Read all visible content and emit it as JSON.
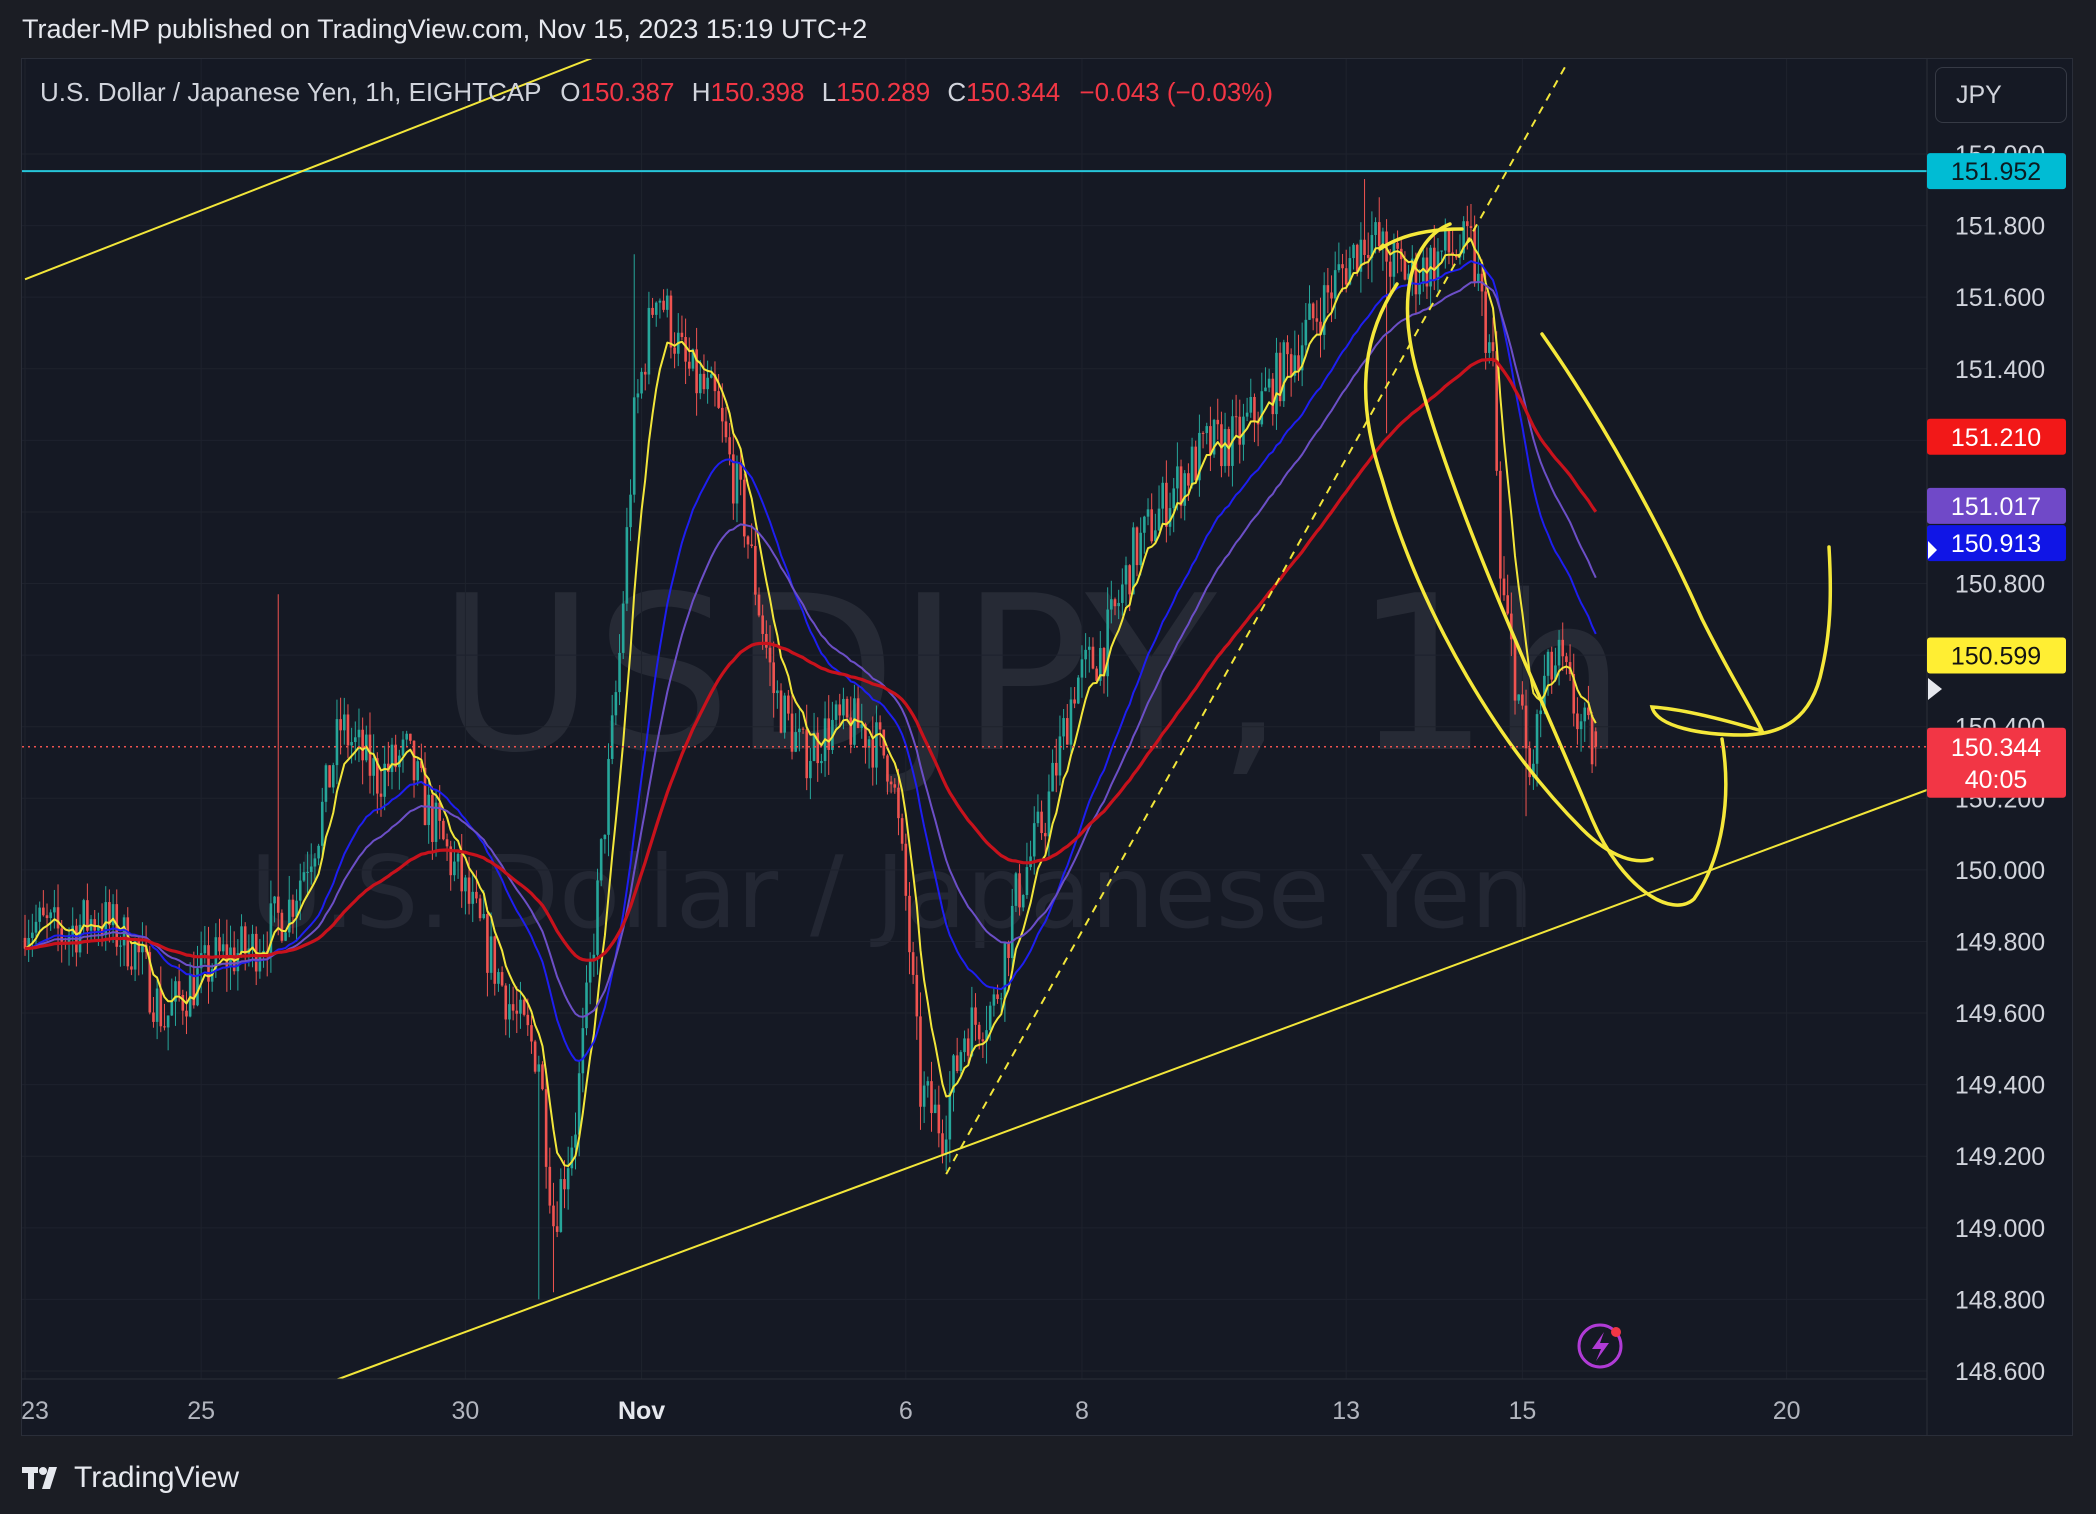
{
  "header": {
    "publish_text": "Trader-MP published on TradingView.com, Nov 15, 2023 15:19 UTC+2"
  },
  "legend": {
    "symbol": "U.S. Dollar / Japanese Yen, 1h, EIGHTCAP",
    "o_label": "O",
    "o_value": "150.387",
    "h_label": "H",
    "h_value": "150.398",
    "l_label": "L",
    "l_value": "150.289",
    "c_label": "C",
    "c_value": "150.344",
    "change": "−0.043 (−0.03%)"
  },
  "currency_button": "JPY",
  "watermark": {
    "symbol": "USDJPY, 1h",
    "name": "U.S. Dollar / Japanese Yen"
  },
  "footer": {
    "brand": "TradingView"
  },
  "colors": {
    "background": "#151924",
    "up": "#26a69a",
    "down": "#ef5350",
    "ema_fast": "#f2e63a",
    "ema_mid": "#1e1ef0",
    "ema_slow": "#6c4fc7",
    "ema_long": "#c8121c",
    "horizontal_level": "#26c6da",
    "trendline": "#f2e63a",
    "drawing": "#f5e83a"
  },
  "chart_data": {
    "type": "candlestick",
    "symbol": "USDJPY",
    "interval": "1h",
    "y_axis": {
      "range": [
        148.45,
        152.05
      ],
      "ticks": [
        "152.000",
        "151.800",
        "151.600",
        "151.400",
        "151.200",
        "151.000",
        "150.800",
        "150.600",
        "150.400",
        "150.200",
        "150.000",
        "149.800",
        "149.600",
        "149.400",
        "149.200",
        "149.000",
        "148.800",
        "148.600"
      ]
    },
    "x_axis": {
      "ticks": [
        {
          "label": "23",
          "i": 0
        },
        {
          "label": "25",
          "i": 48
        },
        {
          "label": "30",
          "i": 120
        },
        {
          "label": "Nov",
          "i": 168
        },
        {
          "label": "6",
          "i": 240
        },
        {
          "label": "8",
          "i": 288
        },
        {
          "label": "13",
          "i": 360
        },
        {
          "label": "15",
          "i": 408
        },
        {
          "label": "20",
          "i": 480
        }
      ]
    },
    "anchors": [
      [
        0,
        149.86
      ],
      [
        10,
        149.82
      ],
      [
        20,
        149.87
      ],
      [
        30,
        149.78
      ],
      [
        38,
        149.58
      ],
      [
        42,
        149.64
      ],
      [
        52,
        149.75
      ],
      [
        62,
        149.78
      ],
      [
        72,
        149.9
      ],
      [
        80,
        150.12
      ],
      [
        86,
        150.4
      ],
      [
        96,
        150.26
      ],
      [
        104,
        150.32
      ],
      [
        110,
        150.16
      ],
      [
        118,
        149.98
      ],
      [
        126,
        149.78
      ],
      [
        134,
        149.58
      ],
      [
        140,
        149.48
      ],
      [
        144,
        149.02
      ],
      [
        150,
        149.3
      ],
      [
        156,
        149.92
      ],
      [
        162,
        150.6
      ],
      [
        166,
        151.25
      ],
      [
        172,
        151.64
      ],
      [
        180,
        151.4
      ],
      [
        188,
        151.3
      ],
      [
        196,
        150.98
      ],
      [
        204,
        150.5
      ],
      [
        212,
        150.32
      ],
      [
        220,
        150.4
      ],
      [
        228,
        150.4
      ],
      [
        236,
        150.3
      ],
      [
        240,
        149.92
      ],
      [
        244,
        149.38
      ],
      [
        250,
        149.28
      ],
      [
        256,
        149.55
      ],
      [
        264,
        149.62
      ],
      [
        270,
        149.92
      ],
      [
        278,
        150.15
      ],
      [
        286,
        150.52
      ],
      [
        294,
        150.62
      ],
      [
        302,
        150.88
      ],
      [
        312,
        151.05
      ],
      [
        322,
        151.18
      ],
      [
        330,
        151.2
      ],
      [
        340,
        151.35
      ],
      [
        350,
        151.52
      ],
      [
        358,
        151.66
      ],
      [
        366,
        151.78
      ],
      [
        372,
        151.7
      ],
      [
        378,
        151.66
      ],
      [
        386,
        151.72
      ],
      [
        394,
        151.74
      ],
      [
        400,
        151.4
      ],
      [
        402,
        150.8
      ],
      [
        406,
        150.55
      ],
      [
        410,
        150.25
      ],
      [
        414,
        150.52
      ],
      [
        418,
        150.58
      ],
      [
        424,
        150.4
      ],
      [
        428,
        150.32
      ]
    ],
    "last_candle": {
      "open": 150.387,
      "high": 150.398,
      "low": 150.289,
      "close": 150.344
    },
    "moving_averages": [
      {
        "color_key": "ema_fast",
        "period": 8,
        "last_value": 150.599
      },
      {
        "color_key": "ema_mid",
        "period": 30,
        "last_value": 150.913
      },
      {
        "color_key": "ema_slow",
        "period": 45,
        "last_value": 151.017
      },
      {
        "color_key": "ema_long",
        "period": 90,
        "last_value": 151.21
      }
    ],
    "price_labels": [
      {
        "value": 151.952,
        "text": "151.952",
        "bg": "#00bcd4",
        "fg": "#0c1a20"
      },
      {
        "value": 151.21,
        "text": "151.210",
        "bg": "#f21818",
        "fg": "#ffffff"
      },
      {
        "value": 151.017,
        "text": "151.017",
        "bg": "#7049c8",
        "fg": "#ffffff"
      },
      {
        "value": 150.913,
        "text": "150.913",
        "bg": "#1015e6",
        "fg": "#ffffff"
      },
      {
        "value": 150.599,
        "text": "150.599",
        "bg": "#ffee33",
        "fg": "#131313"
      }
    ],
    "current_price": {
      "value": 150.344,
      "text": "150.344",
      "countdown": "40:05",
      "bg": "#f23645"
    },
    "horizontal_level": 151.952,
    "trendlines": [
      {
        "i1": 65,
        "v1": 148.5,
        "i2": 570,
        "v2": 150.42
      },
      {
        "i1": 0,
        "v1": 151.65,
        "i2": 175,
        "v2": 152.35
      },
      {
        "i1": 251,
        "v1": 149.15,
        "i2": 420,
        "v2": 152.25,
        "dashed": true
      }
    ]
  }
}
